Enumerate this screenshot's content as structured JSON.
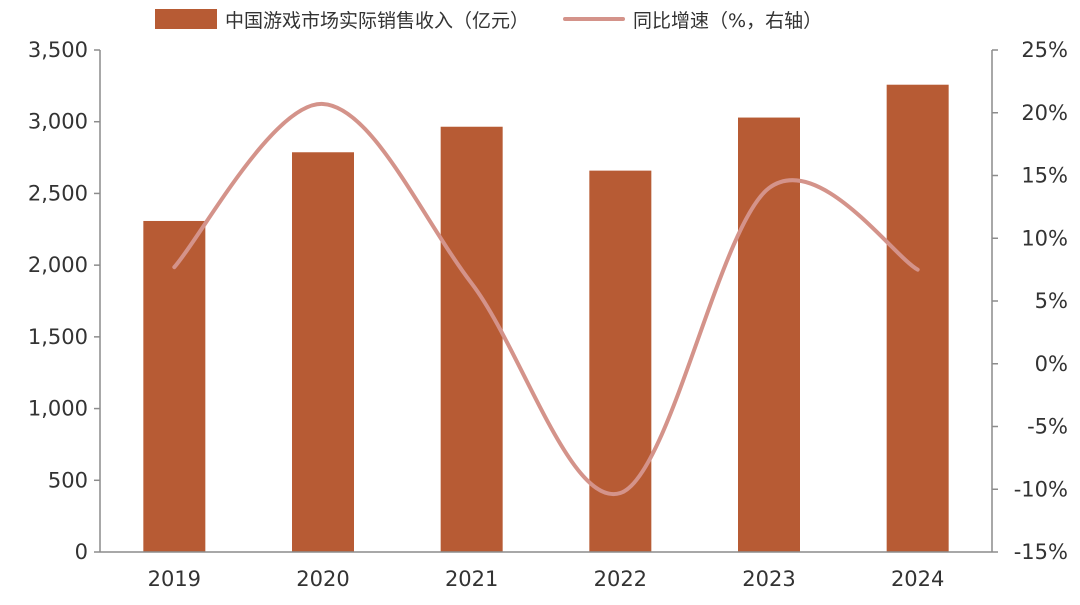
{
  "chart_data": {
    "type": "bar",
    "categories": [
      "2019",
      "2020",
      "2021",
      "2022",
      "2023",
      "2024"
    ],
    "series": [
      {
        "name": "中国游戏市场实际销售收入（亿元）",
        "type": "bar",
        "axis": "left",
        "values": [
          2308,
          2787,
          2965,
          2659,
          3029,
          3258
        ],
        "color": "#b75b34"
      },
      {
        "name": "同比增速（%，右轴）",
        "type": "line",
        "axis": "right",
        "values": [
          7.7,
          20.7,
          6.4,
          -10.3,
          14.0,
          7.5
        ],
        "color": "#d4938a"
      }
    ],
    "y_left": {
      "lim": [
        0,
        3500
      ],
      "ticks": [
        0,
        500,
        1000,
        1500,
        2000,
        2500,
        3000,
        3500
      ],
      "tick_labels": [
        "0",
        "500",
        "1,000",
        "1,500",
        "2,000",
        "2,500",
        "3,000",
        "3,500"
      ]
    },
    "y_right": {
      "lim": [
        -15,
        25
      ],
      "ticks": [
        -15,
        -10,
        -5,
        0,
        5,
        10,
        15,
        20,
        25
      ],
      "tick_labels": [
        "-15%",
        "-10%",
        "-5%",
        "0%",
        "5%",
        "10%",
        "15%",
        "20%",
        "25%"
      ]
    },
    "grid": false,
    "legend_position": "top"
  }
}
